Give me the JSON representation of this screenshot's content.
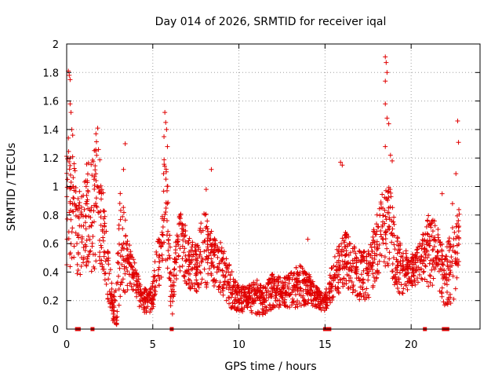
{
  "chart_data": {
    "type": "scatter",
    "title": "Day 014 of 2026, SRMTID for receiver iqal",
    "xlabel": "GPS time / hours",
    "ylabel": "SRMTID / TECUs",
    "xlim": [
      0,
      24
    ],
    "ylim": [
      0,
      2
    ],
    "x_ticks": [
      "0",
      "5",
      "10",
      "15",
      "20"
    ],
    "y_ticks": [
      "0",
      "0.2",
      "0.4",
      "0.6",
      "0.8",
      "1",
      "1.2",
      "1.4",
      "1.6",
      "1.8",
      "2"
    ],
    "grid": true,
    "marker": "plus",
    "color": "#e00000",
    "envelope": [
      [
        0.0,
        0.45,
        1.3
      ],
      [
        0.3,
        0.4,
        1.25
      ],
      [
        0.6,
        0.35,
        1.05
      ],
      [
        0.9,
        0.4,
        0.95
      ],
      [
        1.2,
        0.45,
        1.2
      ],
      [
        1.5,
        0.35,
        1.2
      ],
      [
        1.8,
        0.5,
        1.35
      ],
      [
        2.1,
        0.4,
        1.0
      ],
      [
        2.4,
        0.2,
        0.6
      ],
      [
        2.7,
        0.05,
        0.25
      ],
      [
        2.9,
        0.02,
        0.3
      ],
      [
        3.1,
        0.2,
        1.05
      ],
      [
        3.4,
        0.25,
        0.8
      ],
      [
        3.7,
        0.3,
        0.55
      ],
      [
        4.0,
        0.25,
        0.45
      ],
      [
        4.3,
        0.12,
        0.3
      ],
      [
        4.6,
        0.1,
        0.28
      ],
      [
        4.9,
        0.12,
        0.3
      ],
      [
        5.2,
        0.2,
        0.55
      ],
      [
        5.5,
        0.35,
        0.8
      ],
      [
        5.7,
        0.45,
        1.3
      ],
      [
        5.9,
        0.4,
        0.95
      ],
      [
        6.1,
        0.05,
        0.3
      ],
      [
        6.3,
        0.3,
        0.6
      ],
      [
        6.6,
        0.4,
        0.85
      ],
      [
        7.0,
        0.3,
        0.7
      ],
      [
        7.5,
        0.25,
        0.6
      ],
      [
        8.0,
        0.28,
        0.85
      ],
      [
        8.5,
        0.3,
        0.65
      ],
      [
        9.0,
        0.25,
        0.6
      ],
      [
        9.5,
        0.15,
        0.45
      ],
      [
        10.0,
        0.12,
        0.3
      ],
      [
        10.5,
        0.12,
        0.3
      ],
      [
        11.0,
        0.1,
        0.35
      ],
      [
        11.5,
        0.1,
        0.3
      ],
      [
        12.0,
        0.15,
        0.4
      ],
      [
        12.5,
        0.15,
        0.35
      ],
      [
        13.0,
        0.15,
        0.4
      ],
      [
        13.5,
        0.15,
        0.45
      ],
      [
        14.0,
        0.18,
        0.4
      ],
      [
        14.5,
        0.15,
        0.3
      ],
      [
        15.0,
        0.12,
        0.25
      ],
      [
        15.4,
        0.2,
        0.45
      ],
      [
        15.8,
        0.25,
        0.6
      ],
      [
        16.2,
        0.3,
        0.7
      ],
      [
        16.6,
        0.25,
        0.6
      ],
      [
        17.0,
        0.2,
        0.55
      ],
      [
        17.5,
        0.2,
        0.55
      ],
      [
        18.0,
        0.35,
        0.8
      ],
      [
        18.4,
        0.45,
        1.0
      ],
      [
        18.8,
        0.4,
        1.0
      ],
      [
        19.2,
        0.25,
        0.65
      ],
      [
        19.6,
        0.25,
        0.55
      ],
      [
        20.0,
        0.3,
        0.55
      ],
      [
        20.5,
        0.3,
        0.6
      ],
      [
        21.0,
        0.3,
        0.8
      ],
      [
        21.5,
        0.3,
        0.75
      ],
      [
        22.0,
        0.15,
        0.55
      ],
      [
        22.5,
        0.2,
        0.8
      ],
      [
        22.8,
        0.5,
        0.85
      ]
    ],
    "outliers": [
      [
        0.1,
        1.81
      ],
      [
        0.15,
        1.78
      ],
      [
        0.2,
        1.75
      ],
      [
        0.2,
        1.58
      ],
      [
        0.25,
        1.52
      ],
      [
        0.3,
        1.4
      ],
      [
        0.35,
        1.36
      ],
      [
        0.1,
        1.34
      ],
      [
        0.2,
        1.2
      ],
      [
        1.8,
        1.41
      ],
      [
        1.7,
        1.37
      ],
      [
        3.3,
        1.12
      ],
      [
        3.4,
        1.3
      ],
      [
        5.7,
        1.52
      ],
      [
        5.75,
        1.45
      ],
      [
        5.8,
        1.4
      ],
      [
        5.65,
        1.35
      ],
      [
        5.85,
        1.28
      ],
      [
        8.4,
        1.12
      ],
      [
        8.1,
        0.98
      ],
      [
        14.0,
        0.63
      ],
      [
        15.9,
        1.17
      ],
      [
        16.0,
        1.15
      ],
      [
        18.5,
        1.91
      ],
      [
        18.55,
        1.87
      ],
      [
        18.6,
        1.8
      ],
      [
        18.5,
        1.74
      ],
      [
        18.5,
        1.58
      ],
      [
        18.6,
        1.48
      ],
      [
        18.7,
        1.44
      ],
      [
        18.5,
        1.28
      ],
      [
        18.8,
        1.22
      ],
      [
        18.9,
        1.18
      ],
      [
        22.7,
        1.46
      ],
      [
        22.75,
        1.31
      ],
      [
        22.6,
        1.09
      ],
      [
        21.8,
        0.95
      ],
      [
        22.4,
        0.88
      ]
    ],
    "zero_values_hours": [
      0.6,
      0.7,
      1.5,
      6.1,
      15.0,
      15.05,
      15.1,
      15.15,
      15.2,
      15.25,
      20.8,
      21.9,
      22.0,
      22.1
    ]
  }
}
